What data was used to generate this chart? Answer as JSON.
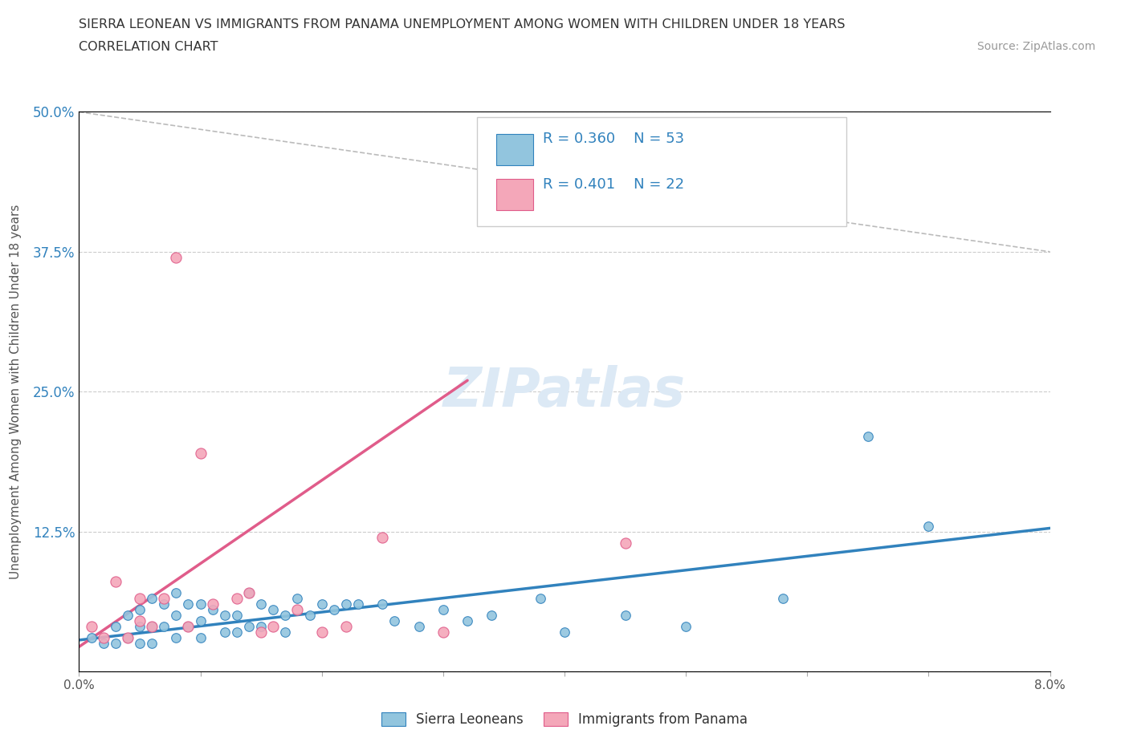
{
  "title_line1": "SIERRA LEONEAN VS IMMIGRANTS FROM PANAMA UNEMPLOYMENT AMONG WOMEN WITH CHILDREN UNDER 18 YEARS",
  "title_line2": "CORRELATION CHART",
  "source_text": "Source: ZipAtlas.com",
  "ylabel": "Unemployment Among Women with Children Under 18 years",
  "xlim": [
    0.0,
    0.08
  ],
  "ylim": [
    0.0,
    0.5
  ],
  "xtick_vals": [
    0.0,
    0.01,
    0.02,
    0.03,
    0.04,
    0.05,
    0.06,
    0.07,
    0.08
  ],
  "ytick_vals": [
    0.0,
    0.125,
    0.25,
    0.375,
    0.5
  ],
  "ytick_labels": [
    "",
    "12.5%",
    "25.0%",
    "37.5%",
    "50.0%"
  ],
  "legend_r1": "R = 0.360",
  "legend_n1": "N = 53",
  "legend_r2": "R = 0.401",
  "legend_n2": "N = 22",
  "color_blue": "#92c5de",
  "color_pink": "#f4a7b9",
  "color_blue_dark": "#3182bd",
  "color_pink_dark": "#e05c8a",
  "watermark": "ZIPatlas",
  "blue_scatter_x": [
    0.001,
    0.002,
    0.003,
    0.003,
    0.004,
    0.004,
    0.005,
    0.005,
    0.005,
    0.006,
    0.006,
    0.006,
    0.007,
    0.007,
    0.008,
    0.008,
    0.008,
    0.009,
    0.009,
    0.01,
    0.01,
    0.01,
    0.011,
    0.012,
    0.012,
    0.013,
    0.013,
    0.014,
    0.014,
    0.015,
    0.015,
    0.016,
    0.017,
    0.017,
    0.018,
    0.019,
    0.02,
    0.021,
    0.022,
    0.023,
    0.025,
    0.026,
    0.028,
    0.03,
    0.032,
    0.034,
    0.038,
    0.04,
    0.045,
    0.05,
    0.058,
    0.065,
    0.07
  ],
  "blue_scatter_y": [
    0.03,
    0.025,
    0.04,
    0.025,
    0.05,
    0.03,
    0.055,
    0.04,
    0.025,
    0.065,
    0.04,
    0.025,
    0.06,
    0.04,
    0.07,
    0.05,
    0.03,
    0.06,
    0.04,
    0.06,
    0.045,
    0.03,
    0.055,
    0.05,
    0.035,
    0.05,
    0.035,
    0.07,
    0.04,
    0.06,
    0.04,
    0.055,
    0.05,
    0.035,
    0.065,
    0.05,
    0.06,
    0.055,
    0.06,
    0.06,
    0.06,
    0.045,
    0.04,
    0.055,
    0.045,
    0.05,
    0.065,
    0.035,
    0.05,
    0.04,
    0.065,
    0.21,
    0.13
  ],
  "pink_scatter_x": [
    0.001,
    0.002,
    0.003,
    0.004,
    0.005,
    0.005,
    0.006,
    0.007,
    0.008,
    0.009,
    0.01,
    0.011,
    0.013,
    0.014,
    0.015,
    0.016,
    0.018,
    0.02,
    0.022,
    0.025,
    0.03,
    0.045
  ],
  "pink_scatter_y": [
    0.04,
    0.03,
    0.08,
    0.03,
    0.065,
    0.045,
    0.04,
    0.065,
    0.37,
    0.04,
    0.195,
    0.06,
    0.065,
    0.07,
    0.035,
    0.04,
    0.055,
    0.035,
    0.04,
    0.12,
    0.035,
    0.115
  ],
  "blue_trendline_x": [
    0.0,
    0.08
  ],
  "blue_trendline_y": [
    0.028,
    0.128
  ],
  "pink_trendline_x": [
    0.0,
    0.032
  ],
  "pink_trendline_y": [
    0.022,
    0.26
  ],
  "dashed_line_x": [
    0.0,
    0.08
  ],
  "dashed_line_y": [
    0.5,
    0.375
  ],
  "legend_label_blue": "Sierra Leoneans",
  "legend_label_pink": "Immigrants from Panama"
}
